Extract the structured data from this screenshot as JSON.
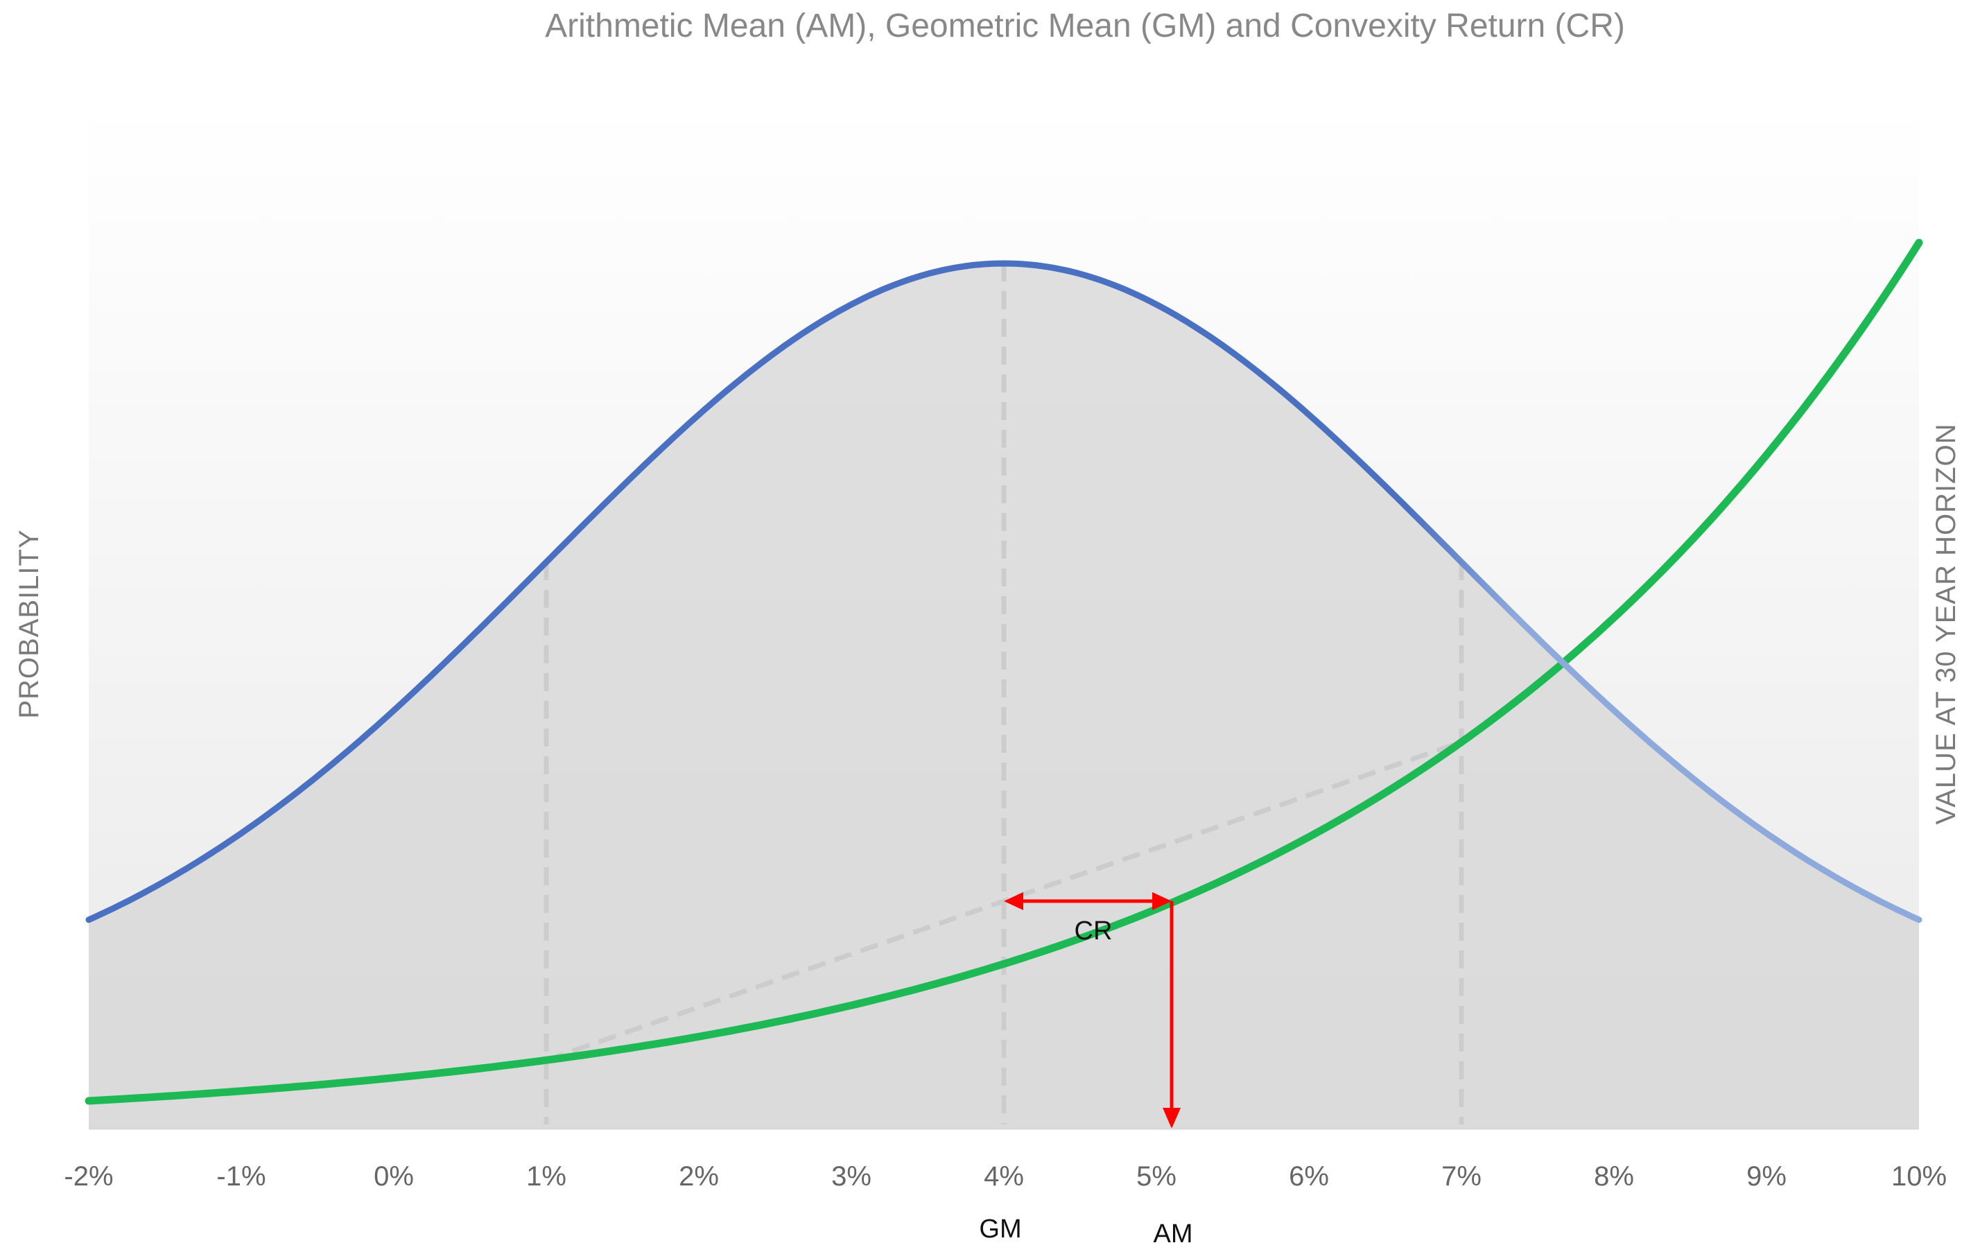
{
  "chart_data": {
    "type": "line",
    "title": "Arithmetic Mean (AM), Geometric Mean (GM) and Convexity Return (CR)",
    "xlabel": "",
    "ylabel_left": "PROBABILITY",
    "ylabel_right": "VALUE AT 30 YEAR HORIZON",
    "x_ticks": [
      "-2%",
      "-1%",
      "0%",
      "1%",
      "2%",
      "3%",
      "4%",
      "5%",
      "6%",
      "7%",
      "8%",
      "9%",
      "10%"
    ],
    "xlim": [
      -2,
      10
    ],
    "grid": false,
    "series": [
      {
        "kind": "normal-density",
        "mean": 4,
        "sd": 3,
        "color": "#4472C4",
        "fill": "#dcdcdc"
      },
      {
        "kind": "growth-curve",
        "function": "(1 + r)^30",
        "horizon_years": 30,
        "color": "#1DB954"
      }
    ],
    "reference_lines_x": [
      1,
      4,
      7
    ],
    "chord_from_x": 1,
    "chord_to_x": 7,
    "annotations": {
      "cr_label": "CR",
      "gm_label": "GM",
      "am_label": "AM",
      "gm_x": 4,
      "am_x": 5.1,
      "arrow_color": "#FF0000"
    }
  }
}
